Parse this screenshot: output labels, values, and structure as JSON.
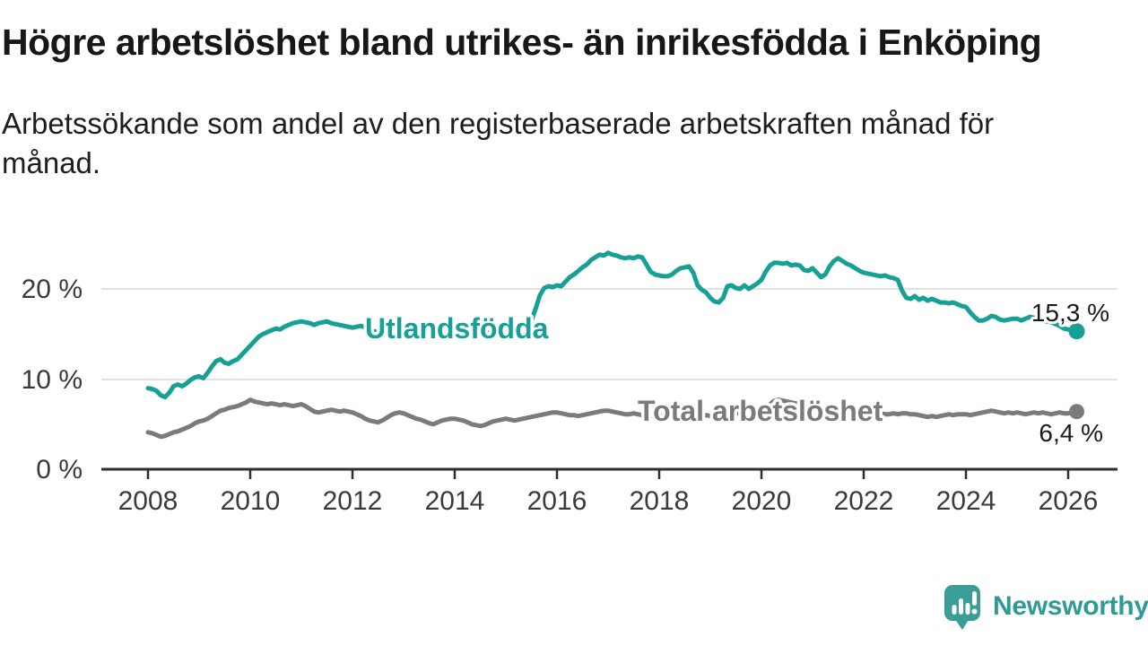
{
  "header": {
    "title": "Högre arbetslöshet bland utrikes- än inrikesfödda i Enköping",
    "subtitle": "Arbetssökande som andel av den registerbaserade arbetskraften månad för månad."
  },
  "chart_data": {
    "type": "line",
    "title": "Högre arbetslöshet bland utrikes- än inrikesfödda i Enköping",
    "subtitle": "Arbetssökande som andel av den registerbaserade arbetskraften månad för månad.",
    "grid": "horizontal",
    "legend_position": "inline-labels",
    "x_start": 2008.0,
    "x_frequency": "monthly",
    "x_axis": {
      "ticks": [
        2008,
        2010,
        2012,
        2014,
        2016,
        2018,
        2020,
        2022,
        2024,
        2026
      ],
      "labels": [
        "2008",
        "2010",
        "2012",
        "2014",
        "2016",
        "2018",
        "2020",
        "2022",
        "2024",
        "2026"
      ]
    },
    "y_axis": {
      "ticks": [
        0,
        10,
        20
      ],
      "labels": [
        "0 %",
        "10 %",
        "20 %"
      ],
      "range": [
        0,
        25.5
      ]
    },
    "series": [
      {
        "name": "Utlandsfödda",
        "color": "#17a095",
        "end_value": 15.3,
        "end_label": "15,3 %",
        "values": [
          9.0,
          8.9,
          8.7,
          8.2,
          8.0,
          8.5,
          9.2,
          9.4,
          9.2,
          9.5,
          9.9,
          10.2,
          10.3,
          10.1,
          10.7,
          11.4,
          12.0,
          12.2,
          11.8,
          11.7,
          12.0,
          12.2,
          12.7,
          13.2,
          13.7,
          14.2,
          14.7,
          15.0,
          15.2,
          15.4,
          15.6,
          15.5,
          15.8,
          16.0,
          16.2,
          16.3,
          16.4,
          16.3,
          16.2,
          16.0,
          16.2,
          16.3,
          16.4,
          16.2,
          16.1,
          16.0,
          15.9,
          15.8,
          15.7,
          15.8,
          15.9,
          15.7,
          15.5,
          15.3,
          15.2,
          15.4,
          15.6,
          15.5,
          15.4,
          15.5,
          15.5,
          15.4,
          15.3,
          15.4,
          15.5,
          15.4,
          15.3,
          15.2,
          15.3,
          15.4,
          15.3,
          15.2,
          15.3,
          15.2,
          15.1,
          15.2,
          15.3,
          15.1,
          15.0,
          15.1,
          15.2,
          15.1,
          15.0,
          15.1,
          15.1,
          15.2,
          15.3,
          15.4,
          15.6,
          15.9,
          16.5,
          17.8,
          19.3,
          20.1,
          20.3,
          20.2,
          20.4,
          20.3,
          20.8,
          21.3,
          21.6,
          22.0,
          22.4,
          22.7,
          23.2,
          23.5,
          23.8,
          23.7,
          24.0,
          23.8,
          23.7,
          23.5,
          23.4,
          23.5,
          23.4,
          23.6,
          23.5,
          22.7,
          21.9,
          21.6,
          21.5,
          21.4,
          21.4,
          21.6,
          22.0,
          22.3,
          22.4,
          22.5,
          21.8,
          20.4,
          19.9,
          19.6,
          19.0,
          18.6,
          18.5,
          19.0,
          20.3,
          20.4,
          20.1,
          20.0,
          20.4,
          20.0,
          20.3,
          20.6,
          21.0,
          21.9,
          22.6,
          22.9,
          22.9,
          22.8,
          22.9,
          22.6,
          22.7,
          22.6,
          22.1,
          22.0,
          22.3,
          21.8,
          21.3,
          21.6,
          22.5,
          23.1,
          23.4,
          23.1,
          22.8,
          22.6,
          22.3,
          22.0,
          21.8,
          21.7,
          21.6,
          21.5,
          21.4,
          21.5,
          21.3,
          21.2,
          21.0,
          19.8,
          19.0,
          18.9,
          19.2,
          18.8,
          19.0,
          18.7,
          18.9,
          18.7,
          18.5,
          18.5,
          18.4,
          18.5,
          18.3,
          18.1,
          18.0,
          17.4,
          16.9,
          16.5,
          16.5,
          16.7,
          17.0,
          16.9,
          16.6,
          16.5,
          16.6,
          16.7,
          16.7,
          16.5,
          16.7,
          16.9,
          16.8,
          16.6,
          16.4,
          16.4,
          16.3,
          16.1,
          15.9,
          15.6,
          15.5,
          15.4,
          15.3
        ]
      },
      {
        "name": "Total arbetslöshet",
        "color": "#7c797f",
        "end_value": 6.4,
        "end_label": "6,4 %",
        "values": [
          4.1,
          4.0,
          3.8,
          3.6,
          3.7,
          3.9,
          4.1,
          4.2,
          4.4,
          4.6,
          4.8,
          5.1,
          5.3,
          5.4,
          5.6,
          5.9,
          6.2,
          6.5,
          6.6,
          6.8,
          6.9,
          7.0,
          7.2,
          7.4,
          7.7,
          7.5,
          7.4,
          7.3,
          7.2,
          7.3,
          7.2,
          7.1,
          7.2,
          7.1,
          7.0,
          7.1,
          7.2,
          7.0,
          6.7,
          6.4,
          6.3,
          6.4,
          6.5,
          6.6,
          6.5,
          6.4,
          6.5,
          6.4,
          6.3,
          6.1,
          5.9,
          5.6,
          5.4,
          5.3,
          5.2,
          5.4,
          5.7,
          6.0,
          6.2,
          6.3,
          6.2,
          6.0,
          5.8,
          5.6,
          5.5,
          5.3,
          5.1,
          5.0,
          5.2,
          5.4,
          5.5,
          5.6,
          5.6,
          5.5,
          5.4,
          5.2,
          5.0,
          4.9,
          4.8,
          4.9,
          5.1,
          5.3,
          5.4,
          5.5,
          5.6,
          5.5,
          5.4,
          5.5,
          5.6,
          5.7,
          5.8,
          5.9,
          6.0,
          6.1,
          6.2,
          6.3,
          6.3,
          6.2,
          6.1,
          6.0,
          6.0,
          5.9,
          6.0,
          6.1,
          6.2,
          6.3,
          6.4,
          6.5,
          6.5,
          6.4,
          6.3,
          6.2,
          6.1,
          6.1,
          6.2,
          6.1,
          6.0,
          6.0,
          5.9,
          6.0,
          6.0,
          5.9,
          5.9,
          5.8,
          5.8,
          5.9,
          5.9,
          5.8,
          5.8,
          5.9,
          5.9,
          6.0,
          5.9,
          5.9,
          6.0,
          6.0,
          6.1,
          6.1,
          6.2,
          6.2,
          6.3,
          6.3,
          6.4,
          6.5,
          6.6,
          6.8,
          7.2,
          7.6,
          7.7,
          7.6,
          7.5,
          7.4,
          7.3,
          7.2,
          7.1,
          7.0,
          7.0,
          6.9,
          6.8,
          6.7,
          6.6,
          6.5,
          6.4,
          6.4,
          6.3,
          6.3,
          6.2,
          6.2,
          6.3,
          6.2,
          6.2,
          6.1,
          6.2,
          6.1,
          6.1,
          6.2,
          6.1,
          6.2,
          6.2,
          6.1,
          6.1,
          6.0,
          5.9,
          5.8,
          5.9,
          5.8,
          5.9,
          6.0,
          6.1,
          6.0,
          6.1,
          6.1,
          6.1,
          6.0,
          6.1,
          6.2,
          6.3,
          6.4,
          6.5,
          6.4,
          6.3,
          6.2,
          6.3,
          6.2,
          6.3,
          6.2,
          6.1,
          6.2,
          6.3,
          6.2,
          6.3,
          6.2,
          6.1,
          6.2,
          6.3,
          6.2,
          6.2,
          6.3,
          6.4
        ]
      }
    ]
  },
  "branding": {
    "name": "Newsworthy",
    "color": "#2e9c94",
    "icon": "newsworthy-speech-bubble-bars-icon"
  }
}
